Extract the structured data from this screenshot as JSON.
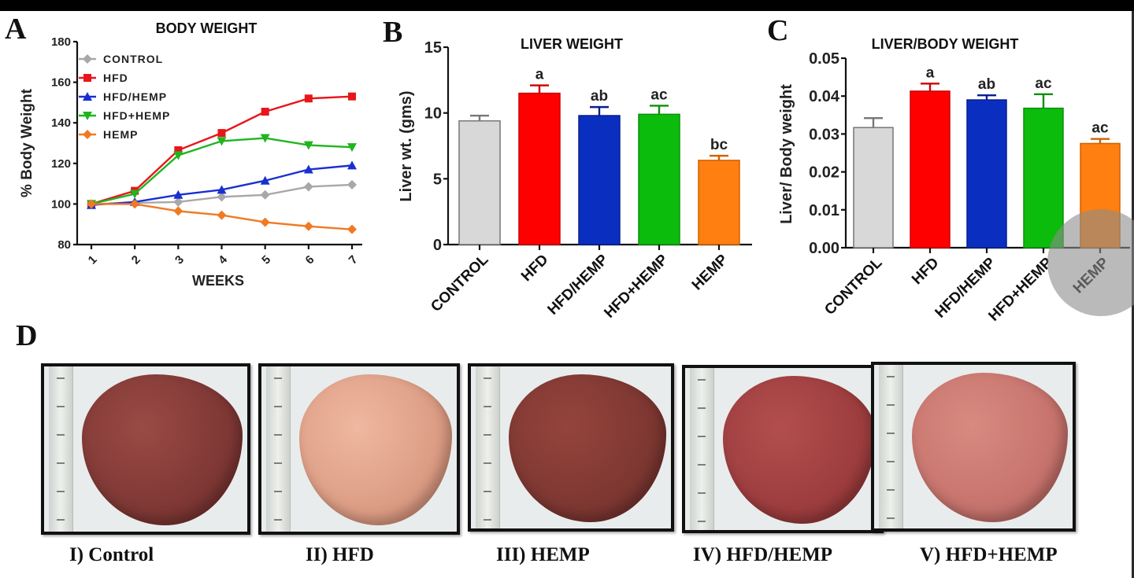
{
  "panels": {
    "A": "A",
    "B": "B",
    "C": "C",
    "D": "D"
  },
  "colors": {
    "control": "#a8a8a8",
    "hfd": "#e8161b",
    "hfd_hemp_slash": "#1a2fd0",
    "hfd_plus_hemp": "#1fb51f",
    "hemp": "#f07a22",
    "control_bar": "#d8d8d8",
    "hfd_bar": "#ff0000",
    "hfd_hemp_bar": "#0a2fc0",
    "hfd_plus_hemp_bar": "#0cbc0c",
    "hemp_bar": "#ff7f10"
  },
  "chart_data": [
    {
      "id": "A",
      "type": "line",
      "title": "BODY WEIGHT",
      "xlabel": "WEEKS",
      "ylabel": "% Body Weight",
      "x": [
        1,
        2,
        3,
        4,
        5,
        6,
        7
      ],
      "x_tick_labels": [
        "1",
        "2",
        "3",
        "4",
        "5",
        "6",
        "7"
      ],
      "ylim": [
        80,
        180
      ],
      "y_ticks": [
        80,
        100,
        120,
        140,
        160,
        180
      ],
      "y_tick_labels": [
        "80",
        "100",
        "120",
        "140",
        "160",
        "180"
      ],
      "legend_position": "top-left",
      "grid": false,
      "series": [
        {
          "name": "CONTROL",
          "marker": "diamond",
          "values": [
            100,
            100.5,
            101,
            103.5,
            104.5,
            108.5,
            109.5
          ]
        },
        {
          "name": "HFD",
          "marker": "square",
          "values": [
            100,
            106.5,
            126.5,
            135,
            145.5,
            152,
            153
          ]
        },
        {
          "name": "HFD/HEMP",
          "marker": "triangle-up",
          "values": [
            99.5,
            101,
            104.5,
            107,
            111.5,
            117,
            119
          ]
        },
        {
          "name": "HFD+HEMP",
          "marker": "triangle-down",
          "values": [
            100,
            105,
            124,
            131,
            132.5,
            129,
            128
          ]
        },
        {
          "name": "HEMP",
          "marker": "diamond",
          "values": [
            100,
            100,
            96.5,
            94.5,
            91,
            89,
            87.5
          ]
        }
      ]
    },
    {
      "id": "B",
      "type": "bar",
      "title": "LIVER WEIGHT",
      "xlabel": "",
      "ylabel": "Liver wt. (gms)",
      "categories": [
        "CONTROL",
        "HFD",
        "HFD/HEMP",
        "HFD+HEMP",
        "HEMP"
      ],
      "values": [
        9.4,
        11.5,
        9.8,
        9.9,
        6.4
      ],
      "errors": [
        0.4,
        0.6,
        0.65,
        0.65,
        0.35
      ],
      "significance": [
        "",
        "a",
        "ab",
        "ac",
        "bc"
      ],
      "ylim": [
        0,
        15
      ],
      "y_ticks": [
        0,
        5,
        10,
        15
      ],
      "y_tick_labels": [
        "0",
        "5",
        "10",
        "15"
      ]
    },
    {
      "id": "C",
      "type": "bar",
      "title": "LIVER/BODY WEIGHT",
      "xlabel": "",
      "ylabel": "Liver/ Body weight",
      "categories": [
        "CONTROL",
        "HFD",
        "HFD/HEMP",
        "HFD+HEMP",
        "HEMP"
      ],
      "values": [
        0.0317,
        0.0413,
        0.039,
        0.0368,
        0.0275
      ],
      "errors": [
        0.0025,
        0.002,
        0.0012,
        0.0037,
        0.0012
      ],
      "significance": [
        "",
        "a",
        "ab",
        "ac",
        "ac"
      ],
      "ylim": [
        0,
        0.05
      ],
      "y_ticks": [
        0,
        0.01,
        0.02,
        0.03,
        0.04,
        0.05
      ],
      "y_tick_labels": [
        "0.00",
        "0.01",
        "0.02",
        "0.03",
        "0.04",
        "0.05"
      ]
    }
  ],
  "photos": [
    {
      "caption": "I) Control",
      "liver_color": "#7a3532",
      "liver_light": "#9a4a45"
    },
    {
      "caption": "II) HFD",
      "liver_color": "#d99880",
      "liver_light": "#efb8a0"
    },
    {
      "caption": "III) HEMP",
      "liver_color": "#7a3530",
      "liver_light": "#94443c"
    },
    {
      "caption": "IV) HFD/HEMP",
      "liver_color": "#9a3a3c",
      "liver_light": "#b24e4e"
    },
    {
      "caption": "V) HFD+HEMP",
      "liver_color": "#c4706a",
      "liver_light": "#d88a80"
    }
  ]
}
